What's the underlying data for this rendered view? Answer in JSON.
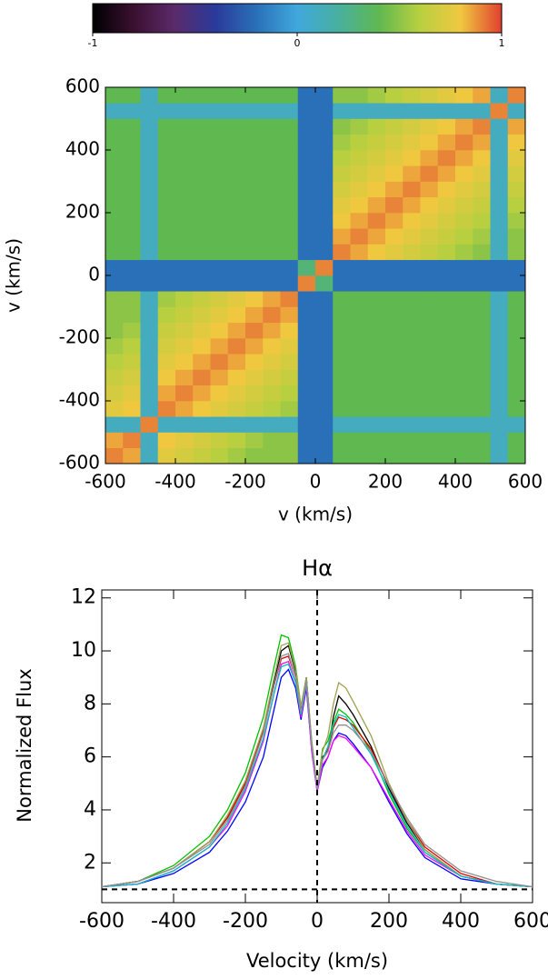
{
  "chart_data": [
    {
      "type": "heatmap",
      "xlabel": "v (km/s)",
      "ylabel": "v (km/s)",
      "x": [
        -575,
        -525,
        -475,
        -425,
        -375,
        -325,
        -275,
        -225,
        -175,
        -125,
        -75,
        -25,
        25,
        75,
        125,
        175,
        225,
        275,
        325,
        375,
        425,
        475,
        525,
        575
      ],
      "y": [
        -575,
        -525,
        -475,
        -425,
        -375,
        -325,
        -275,
        -225,
        -175,
        -125,
        -75,
        -25,
        25,
        75,
        125,
        175,
        225,
        275,
        325,
        375,
        425,
        475,
        525,
        575
      ],
      "values": [
        [
          0.9,
          0.85,
          0.1,
          0.75,
          0.7,
          0.65,
          0.6,
          0.55,
          0.5,
          0.5,
          0.5,
          -0.2,
          -0.2,
          0.4,
          0.4,
          0.4,
          0.4,
          0.4,
          0.4,
          0.4,
          0.4,
          0.4,
          0.1,
          0.4
        ],
        [
          0.85,
          0.9,
          0.1,
          0.8,
          0.75,
          0.7,
          0.65,
          0.6,
          0.55,
          0.5,
          0.5,
          -0.2,
          -0.2,
          0.4,
          0.4,
          0.4,
          0.4,
          0.4,
          0.4,
          0.4,
          0.4,
          0.4,
          0.1,
          0.4
        ],
        [
          0.1,
          0.1,
          0.9,
          0.1,
          0.1,
          0.1,
          0.1,
          0.1,
          0.1,
          0.1,
          0.1,
          -0.2,
          -0.2,
          0.1,
          0.1,
          0.1,
          0.1,
          0.1,
          0.1,
          0.1,
          0.1,
          0.1,
          0.1,
          0.1
        ],
        [
          0.75,
          0.8,
          0.1,
          0.9,
          0.85,
          0.8,
          0.75,
          0.7,
          0.65,
          0.6,
          0.55,
          -0.2,
          -0.2,
          0.4,
          0.4,
          0.4,
          0.4,
          0.4,
          0.4,
          0.4,
          0.4,
          0.4,
          0.1,
          0.4
        ],
        [
          0.7,
          0.75,
          0.1,
          0.85,
          0.9,
          0.85,
          0.8,
          0.75,
          0.7,
          0.65,
          0.6,
          -0.2,
          -0.2,
          0.4,
          0.4,
          0.4,
          0.4,
          0.4,
          0.4,
          0.4,
          0.4,
          0.4,
          0.1,
          0.4
        ],
        [
          0.65,
          0.7,
          0.1,
          0.8,
          0.85,
          0.9,
          0.85,
          0.8,
          0.75,
          0.7,
          0.65,
          -0.2,
          -0.2,
          0.4,
          0.4,
          0.4,
          0.4,
          0.4,
          0.4,
          0.4,
          0.4,
          0.4,
          0.1,
          0.4
        ],
        [
          0.6,
          0.65,
          0.1,
          0.75,
          0.8,
          0.85,
          0.9,
          0.85,
          0.8,
          0.75,
          0.7,
          -0.2,
          -0.2,
          0.4,
          0.4,
          0.4,
          0.4,
          0.4,
          0.4,
          0.4,
          0.4,
          0.4,
          0.1,
          0.4
        ],
        [
          0.55,
          0.6,
          0.1,
          0.7,
          0.75,
          0.8,
          0.85,
          0.9,
          0.85,
          0.8,
          0.75,
          -0.2,
          -0.2,
          0.4,
          0.4,
          0.4,
          0.4,
          0.4,
          0.4,
          0.4,
          0.4,
          0.4,
          0.1,
          0.4
        ],
        [
          0.5,
          0.55,
          0.1,
          0.65,
          0.7,
          0.75,
          0.8,
          0.85,
          0.9,
          0.85,
          0.8,
          -0.2,
          -0.2,
          0.4,
          0.4,
          0.4,
          0.4,
          0.4,
          0.4,
          0.4,
          0.4,
          0.4,
          0.1,
          0.4
        ],
        [
          0.5,
          0.5,
          0.1,
          0.6,
          0.65,
          0.7,
          0.75,
          0.8,
          0.85,
          0.9,
          0.85,
          -0.2,
          -0.2,
          0.4,
          0.4,
          0.4,
          0.4,
          0.4,
          0.4,
          0.4,
          0.4,
          0.4,
          0.1,
          0.4
        ],
        [
          0.5,
          0.5,
          0.1,
          0.55,
          0.6,
          0.65,
          0.7,
          0.75,
          0.8,
          0.85,
          0.9,
          -0.2,
          -0.2,
          0.4,
          0.4,
          0.4,
          0.4,
          0.4,
          0.4,
          0.4,
          0.4,
          0.4,
          0.1,
          0.4
        ],
        [
          -0.2,
          -0.2,
          -0.2,
          -0.2,
          -0.2,
          -0.2,
          -0.2,
          -0.2,
          -0.2,
          -0.2,
          -0.2,
          0.9,
          0.3,
          -0.2,
          -0.2,
          -0.2,
          -0.2,
          -0.2,
          -0.2,
          -0.2,
          -0.2,
          -0.2,
          -0.2,
          -0.2
        ],
        [
          -0.2,
          -0.2,
          -0.2,
          -0.2,
          -0.2,
          -0.2,
          -0.2,
          -0.2,
          -0.2,
          -0.2,
          -0.2,
          0.3,
          0.9,
          -0.2,
          -0.2,
          -0.2,
          -0.2,
          -0.2,
          -0.2,
          -0.2,
          -0.2,
          -0.2,
          -0.2,
          -0.2
        ],
        [
          0.4,
          0.4,
          0.1,
          0.4,
          0.4,
          0.4,
          0.4,
          0.4,
          0.4,
          0.4,
          0.4,
          -0.2,
          -0.2,
          0.9,
          0.85,
          0.8,
          0.75,
          0.7,
          0.65,
          0.6,
          0.55,
          0.5,
          0.1,
          0.5
        ],
        [
          0.4,
          0.4,
          0.1,
          0.4,
          0.4,
          0.4,
          0.4,
          0.4,
          0.4,
          0.4,
          0.4,
          -0.2,
          -0.2,
          0.85,
          0.9,
          0.85,
          0.8,
          0.75,
          0.7,
          0.65,
          0.6,
          0.55,
          0.1,
          0.5
        ],
        [
          0.4,
          0.4,
          0.1,
          0.4,
          0.4,
          0.4,
          0.4,
          0.4,
          0.4,
          0.4,
          0.4,
          -0.2,
          -0.2,
          0.8,
          0.85,
          0.9,
          0.85,
          0.8,
          0.75,
          0.7,
          0.65,
          0.6,
          0.1,
          0.55
        ],
        [
          0.4,
          0.4,
          0.1,
          0.4,
          0.4,
          0.4,
          0.4,
          0.4,
          0.4,
          0.4,
          0.4,
          -0.2,
          -0.2,
          0.75,
          0.8,
          0.85,
          0.9,
          0.85,
          0.8,
          0.75,
          0.7,
          0.65,
          0.1,
          0.6
        ],
        [
          0.4,
          0.4,
          0.1,
          0.4,
          0.4,
          0.4,
          0.4,
          0.4,
          0.4,
          0.4,
          0.4,
          -0.2,
          -0.2,
          0.7,
          0.75,
          0.8,
          0.85,
          0.9,
          0.85,
          0.8,
          0.75,
          0.7,
          0.1,
          0.65
        ],
        [
          0.4,
          0.4,
          0.1,
          0.4,
          0.4,
          0.4,
          0.4,
          0.4,
          0.4,
          0.4,
          0.4,
          -0.2,
          -0.2,
          0.65,
          0.7,
          0.75,
          0.8,
          0.85,
          0.9,
          0.85,
          0.8,
          0.75,
          0.1,
          0.7
        ],
        [
          0.4,
          0.4,
          0.1,
          0.4,
          0.4,
          0.4,
          0.4,
          0.4,
          0.4,
          0.4,
          0.4,
          -0.2,
          -0.2,
          0.6,
          0.65,
          0.7,
          0.75,
          0.8,
          0.85,
          0.9,
          0.85,
          0.8,
          0.1,
          0.75
        ],
        [
          0.4,
          0.4,
          0.1,
          0.4,
          0.4,
          0.4,
          0.4,
          0.4,
          0.4,
          0.4,
          0.4,
          -0.2,
          -0.2,
          0.55,
          0.6,
          0.65,
          0.7,
          0.75,
          0.8,
          0.85,
          0.9,
          0.85,
          0.1,
          0.8
        ],
        [
          0.4,
          0.4,
          0.1,
          0.4,
          0.4,
          0.4,
          0.4,
          0.4,
          0.4,
          0.4,
          0.4,
          -0.2,
          -0.2,
          0.5,
          0.55,
          0.6,
          0.65,
          0.7,
          0.75,
          0.8,
          0.85,
          0.9,
          0.1,
          0.85
        ],
        [
          0.1,
          0.1,
          0.1,
          0.1,
          0.1,
          0.1,
          0.1,
          0.1,
          0.1,
          0.1,
          0.1,
          -0.2,
          -0.2,
          0.1,
          0.1,
          0.1,
          0.1,
          0.1,
          0.1,
          0.1,
          0.1,
          0.1,
          0.9,
          0.1
        ],
        [
          0.4,
          0.4,
          0.1,
          0.4,
          0.4,
          0.4,
          0.4,
          0.4,
          0.4,
          0.4,
          0.4,
          -0.2,
          -0.2,
          0.5,
          0.5,
          0.55,
          0.6,
          0.65,
          0.7,
          0.75,
          0.8,
          0.85,
          0.1,
          0.9
        ]
      ],
      "xlim": [
        -600,
        600
      ],
      "ylim": [
        -600,
        600
      ],
      "xticks": [
        -600,
        -400,
        -200,
        0,
        200,
        400,
        600
      ],
      "yticks": [
        -600,
        -400,
        -200,
        0,
        200,
        400,
        600
      ],
      "clim": [
        -1,
        1
      ],
      "cticks": [
        -1,
        0,
        1
      ],
      "colormap": [
        "#000000",
        "#3a1030",
        "#5a2a6a",
        "#2a3a9a",
        "#2a70b8",
        "#40a8dc",
        "#48b0a0",
        "#60b850",
        "#b8d040",
        "#f0c840",
        "#e04030"
      ]
    },
    {
      "type": "line",
      "title": "Hα",
      "xlabel": "Velocity (km/s)",
      "ylabel": "Normalized Flux",
      "x": [
        -600,
        -500,
        -400,
        -300,
        -250,
        -200,
        -150,
        -120,
        -100,
        -80,
        -60,
        -45,
        -30,
        -15,
        0,
        15,
        30,
        45,
        60,
        80,
        100,
        150,
        200,
        250,
        300,
        400,
        500,
        600
      ],
      "series": [
        {
          "color": "#000000",
          "values": [
            1.1,
            1.3,
            1.8,
            2.8,
            3.7,
            5.0,
            7.0,
            8.8,
            10.0,
            10.2,
            9.2,
            7.8,
            9.0,
            6.5,
            4.8,
            6.0,
            6.2,
            7.5,
            8.3,
            8.0,
            7.6,
            6.4,
            4.8,
            3.5,
            2.5,
            1.5,
            1.2,
            1.1
          ]
        },
        {
          "color": "#00c000",
          "values": [
            1.1,
            1.3,
            1.9,
            3.0,
            4.0,
            5.4,
            7.5,
            9.4,
            10.6,
            10.5,
            9.4,
            7.9,
            9.0,
            6.4,
            4.8,
            6.3,
            6.6,
            7.3,
            7.8,
            7.6,
            7.3,
            6.2,
            4.6,
            3.3,
            2.4,
            1.5,
            1.2,
            1.1
          ]
        },
        {
          "color": "#0000ff",
          "values": [
            1.1,
            1.2,
            1.6,
            2.4,
            3.2,
            4.3,
            6.0,
            7.8,
            9.0,
            9.3,
            8.6,
            7.4,
            8.6,
            6.2,
            4.7,
            5.6,
            6.0,
            6.6,
            6.9,
            6.8,
            6.5,
            5.6,
            4.3,
            3.1,
            2.2,
            1.4,
            1.2,
            1.1
          ]
        },
        {
          "color": "#e00000",
          "values": [
            1.1,
            1.3,
            1.8,
            2.8,
            3.7,
            5.0,
            7.0,
            8.7,
            9.7,
            9.8,
            9.0,
            7.6,
            8.8,
            6.3,
            4.8,
            5.9,
            6.3,
            7.1,
            7.5,
            7.4,
            7.2,
            6.3,
            4.9,
            3.6,
            2.6,
            1.6,
            1.2,
            1.1
          ]
        },
        {
          "color": "#ff00ff",
          "values": [
            1.1,
            1.2,
            1.7,
            2.6,
            3.4,
            4.7,
            6.6,
            8.4,
            9.5,
            9.6,
            8.8,
            7.5,
            8.7,
            6.2,
            4.7,
            5.7,
            6.0,
            6.6,
            6.8,
            6.7,
            6.4,
            5.6,
            4.4,
            3.2,
            2.3,
            1.5,
            1.2,
            1.1
          ]
        },
        {
          "color": "#a0a050",
          "values": [
            1.1,
            1.3,
            1.8,
            2.8,
            3.8,
            5.1,
            7.1,
            9.0,
            10.2,
            10.3,
            9.3,
            7.9,
            9.0,
            6.6,
            4.9,
            6.2,
            6.8,
            8.0,
            8.8,
            8.6,
            8.1,
            6.8,
            5.0,
            3.6,
            2.5,
            1.5,
            1.2,
            1.1
          ]
        },
        {
          "color": "#00c0c0",
          "values": [
            1.1,
            1.2,
            1.7,
            2.6,
            3.5,
            4.8,
            6.7,
            8.4,
            9.4,
            9.5,
            8.8,
            7.6,
            8.8,
            6.4,
            4.8,
            5.9,
            6.4,
            7.2,
            7.6,
            7.5,
            7.1,
            6.1,
            4.7,
            3.4,
            2.4,
            1.5,
            1.2,
            1.1
          ]
        },
        {
          "color": "#909090",
          "values": [
            1.1,
            1.3,
            1.8,
            2.7,
            3.6,
            4.9,
            6.9,
            8.7,
            9.8,
            9.9,
            9.0,
            7.7,
            8.9,
            6.4,
            4.8,
            5.9,
            6.2,
            6.9,
            7.2,
            7.2,
            7.0,
            6.2,
            4.9,
            3.7,
            2.7,
            1.7,
            1.3,
            1.1
          ]
        }
      ],
      "xlim": [
        -600,
        600
      ],
      "ylim": [
        0.5,
        12.3
      ],
      "xticks": [
        -600,
        -400,
        -200,
        0,
        200,
        400,
        600
      ],
      "yticks": [
        2,
        4,
        6,
        8,
        10,
        12
      ],
      "hline": 1,
      "vline": 0
    }
  ]
}
